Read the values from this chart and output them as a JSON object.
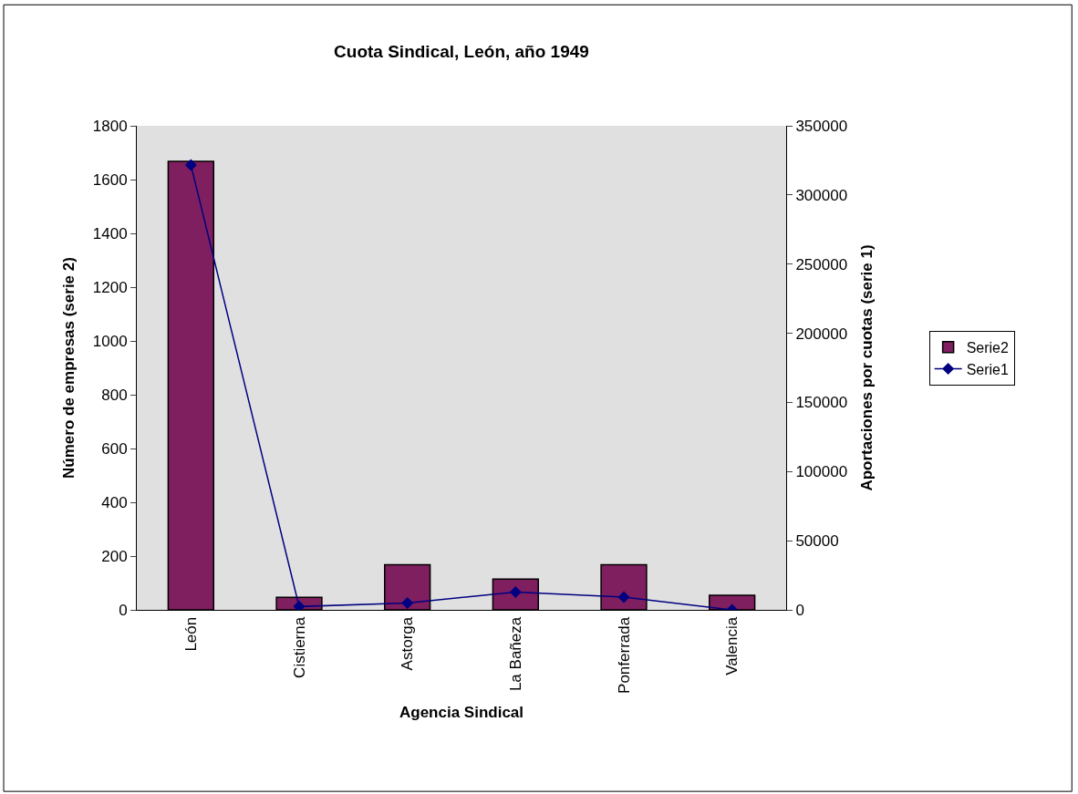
{
  "chart_data": {
    "type": "bar",
    "title": "Cuota Sindical, León, año 1949",
    "xlabel": "Agencia Sindical",
    "ylabel": "Número de empresas (serie 2)",
    "y2label": "Aportaciones por cuotas (serie 1)",
    "categories": [
      "León",
      "Cistierna",
      "Astorga",
      "La Bañeza",
      "Ponferrada",
      "Valencia"
    ],
    "series": [
      {
        "name": "Serie2",
        "color": "#7f1f5f",
        "values": [
          1668,
          47,
          168,
          114,
          168,
          54
        ]
      },
      {
        "name": "Serie1",
        "type": "line",
        "axis": "y2",
        "color": "#000080",
        "marker": "diamond",
        "values": [
          321600,
          2400,
          4900,
          12900,
          9200,
          0
        ]
      }
    ],
    "ylim": [
      0,
      1800
    ],
    "yticks": [
      0,
      200,
      400,
      600,
      800,
      1000,
      1200,
      1400,
      1600,
      1800
    ],
    "y2lim": [
      0,
      350000
    ],
    "y2ticks": [
      0,
      50000,
      100000,
      150000,
      200000,
      250000,
      300000,
      350000
    ],
    "grid": false,
    "legend": "right"
  }
}
